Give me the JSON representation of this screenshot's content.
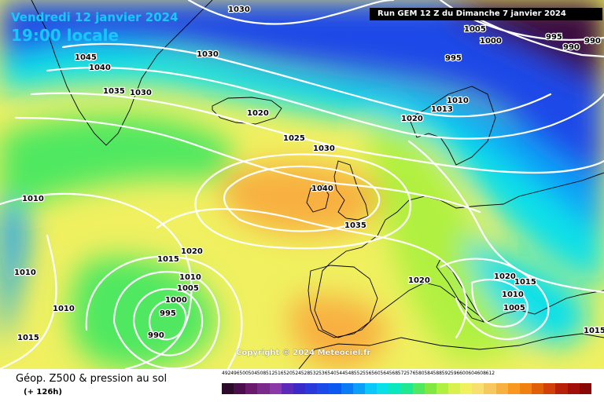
{
  "header": {
    "valid_date": "Vendredi 12 janvier 2024",
    "valid_time": "19:00 locale",
    "run_info": "Run GEM 12 Z du Dimanche 7 janvier 2024"
  },
  "footer": {
    "product_title": "Géop. Z500 & pression au sol",
    "lead_time": "(+ 126h)",
    "copyright": "Copyright © 2024 Meteociel.fr"
  },
  "legend": {
    "values": [
      "492",
      "496",
      "500",
      "504",
      "508",
      "512",
      "516",
      "520",
      "524",
      "528",
      "532",
      "536",
      "540",
      "544",
      "548",
      "552",
      "556",
      "560",
      "564",
      "568",
      "572",
      "576",
      "580",
      "584",
      "588",
      "592",
      "596",
      "600",
      "604",
      "608",
      "612"
    ],
    "colors": [
      "#2b0a2a",
      "#4a0f4a",
      "#6a1a6a",
      "#7a2a8a",
      "#8a3aa8",
      "#5a2ab8",
      "#3a2ac8",
      "#2a3ad8",
      "#1a4ae8",
      "#0a5af2",
      "#0a7af5",
      "#0aa0f8",
      "#0ac8fa",
      "#0ae0e8",
      "#0ae8c0",
      "#20e890",
      "#50e860",
      "#80e840",
      "#b0f040",
      "#d8f050",
      "#f0f060",
      "#f8e070",
      "#f8c860",
      "#f8b040",
      "#f89820",
      "#f08010",
      "#e06008",
      "#d04008",
      "#b82008",
      "#a01008",
      "#880808"
    ]
  },
  "map": {
    "palette": {
      "deep_purple": "#3a1040",
      "blue": "#1a4ae8",
      "sky": "#0aa0f8",
      "cyan": "#0ae0e8",
      "green": "#50e860",
      "yellow_green": "#b0f040",
      "yellow": "#f0f060",
      "orange": "#f8b040",
      "contour": "#ffffff",
      "coast": "#000000"
    },
    "pressure_labels": [
      "1030",
      "1030",
      "1030",
      "1045",
      "1040",
      "1035",
      "1030",
      "1020",
      "1025",
      "1030",
      "1040",
      "1035",
      "1015",
      "1020",
      "1010",
      "1005",
      "1000",
      "995",
      "990",
      "1010",
      "1010",
      "1010",
      "1015",
      "1005",
      "1000",
      "995",
      "995",
      "990",
      "990",
      "1010",
      "1013",
      "1020",
      "1020",
      "1020",
      "1015",
      "1005",
      "1010",
      "1015"
    ]
  }
}
